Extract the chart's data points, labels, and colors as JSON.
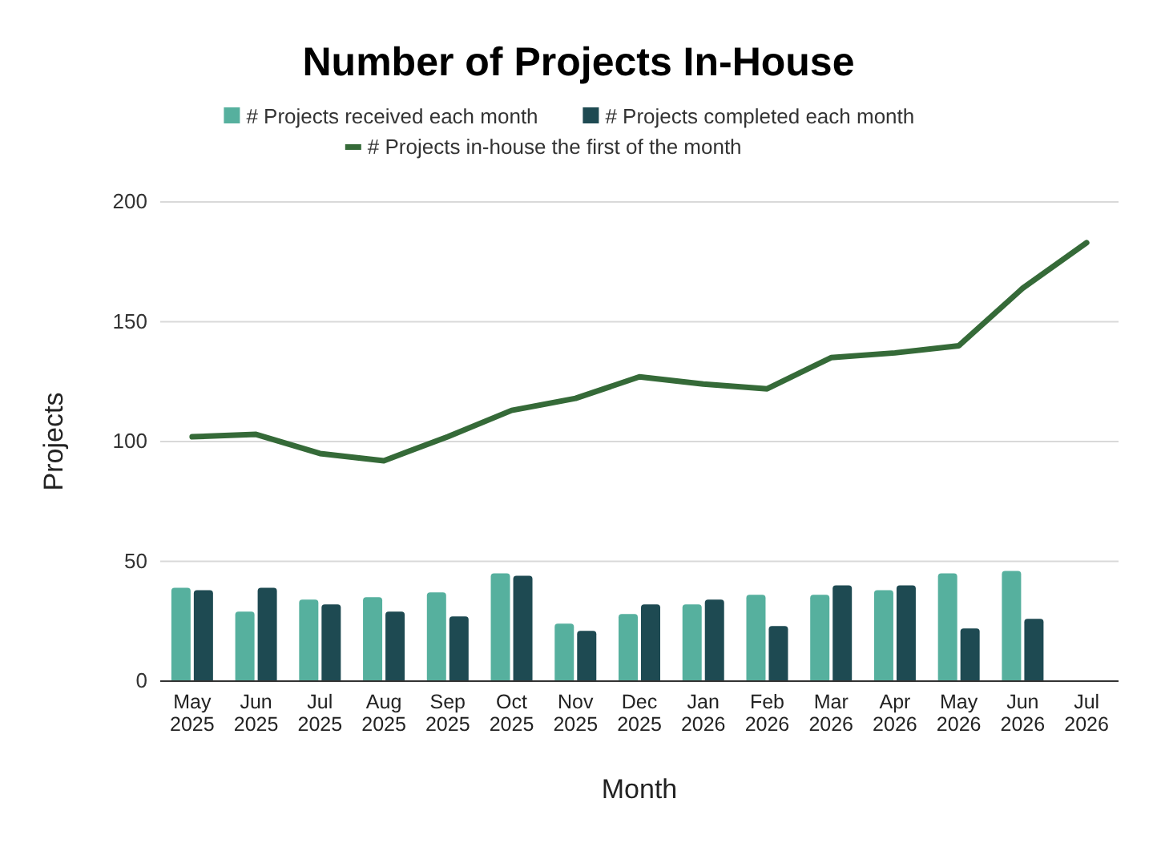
{
  "chart_data": {
    "type": "bar",
    "title": "Number of Projects In-House",
    "xlabel": "Month",
    "ylabel": "Projects",
    "categories": [
      "May 2025",
      "Jun 2025",
      "Jul 2025",
      "Aug 2025",
      "Sep 2025",
      "Oct 2025",
      "Nov 2025",
      "Dec 2025",
      "Jan 2026",
      "Feb 2026",
      "Mar 2026",
      "Apr 2026",
      "May 2026",
      "Jun 2026",
      "Jul 2026"
    ],
    "series": [
      {
        "name": "# Projects received each month",
        "color": "#56b09e",
        "values": [
          39,
          29,
          34,
          35,
          37,
          45,
          24,
          28,
          32,
          36,
          36,
          38,
          45,
          46,
          null
        ]
      },
      {
        "name": "# Projects completed each month",
        "color": "#1e4a52",
        "values": [
          38,
          39,
          32,
          29,
          27,
          44,
          21,
          32,
          34,
          23,
          40,
          40,
          22,
          26,
          null
        ]
      },
      {
        "name": "# Projects in-house the first of the month",
        "type": "line",
        "color": "#356a38",
        "values": [
          102,
          103,
          95,
          92,
          102,
          113,
          118,
          127,
          124,
          122,
          135,
          137,
          140,
          164,
          183
        ]
      }
    ],
    "ylim": [
      0,
      200
    ],
    "yticks": [
      0,
      50,
      100,
      150,
      200
    ],
    "grid": "y",
    "legend": "top"
  }
}
